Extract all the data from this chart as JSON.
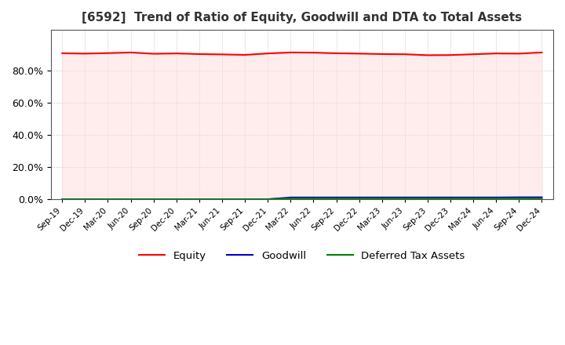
{
  "title": "[6592]  Trend of Ratio of Equity, Goodwill and DTA to Total Assets",
  "title_fontsize": 11,
  "background_color": "#ffffff",
  "plot_bg_color": "#ffffff",
  "grid_color": "#aaaaaa",
  "dates": [
    "Sep-19",
    "Dec-19",
    "Mar-20",
    "Jun-20",
    "Sep-20",
    "Dec-20",
    "Mar-21",
    "Jun-21",
    "Sep-21",
    "Dec-21",
    "Mar-22",
    "Jun-22",
    "Sep-22",
    "Dec-22",
    "Mar-23",
    "Jun-23",
    "Sep-23",
    "Dec-23",
    "Mar-24",
    "Jun-24",
    "Sep-24",
    "Dec-24"
  ],
  "equity": [
    0.905,
    0.903,
    0.906,
    0.91,
    0.902,
    0.904,
    0.9,
    0.898,
    0.895,
    0.904,
    0.91,
    0.909,
    0.905,
    0.903,
    0.9,
    0.899,
    0.893,
    0.894,
    0.899,
    0.904,
    0.903,
    0.91
  ],
  "goodwill": [
    0.0,
    0.0,
    0.0,
    0.0,
    0.0,
    0.0,
    0.0,
    0.0,
    0.0,
    0.0,
    0.011,
    0.011,
    0.011,
    0.011,
    0.011,
    0.011,
    0.011,
    0.011,
    0.011,
    0.011,
    0.012,
    0.012
  ],
  "dta": [
    0.0,
    0.0,
    0.0,
    0.0,
    0.0,
    0.0,
    0.0,
    0.0,
    0.0,
    0.0,
    0.005,
    0.005,
    0.005,
    0.005,
    0.005,
    0.005,
    0.005,
    0.005,
    0.005,
    0.005,
    0.005,
    0.005
  ],
  "equity_color": "#ff0000",
  "goodwill_color": "#0000cc",
  "dta_color": "#008000",
  "equity_fill": "#ffdddd",
  "ylim": [
    0.0,
    1.05
  ],
  "yticks": [
    0.0,
    0.2,
    0.4,
    0.6,
    0.8
  ],
  "legend_labels": [
    "Equity",
    "Goodwill",
    "Deferred Tax Assets"
  ]
}
